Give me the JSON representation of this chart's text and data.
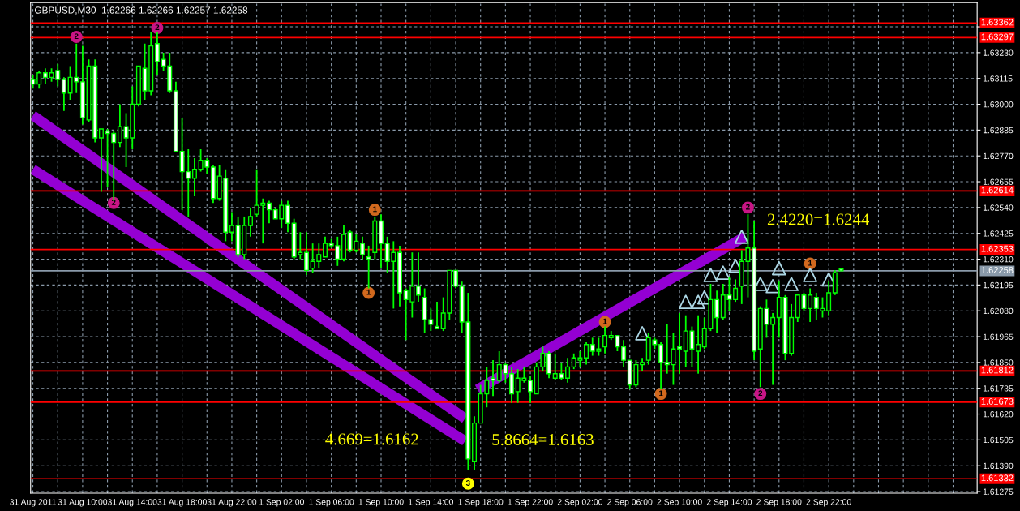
{
  "chart_data": {
    "type": "candlestick",
    "title": "GBPUSD,M30  1.62266 1.62266 1.62257 1.62258",
    "color": "#00ff00",
    "x": [
      "2011-08-31T06:00",
      "2011-08-31T06:30",
      "2011-08-31T07:00",
      "2011-08-31T07:30",
      "2011-08-31T08:00",
      "2011-08-31T08:30",
      "2011-08-31T09:00",
      "2011-08-31T09:30",
      "2011-08-31T10:00",
      "2011-08-31T10:30",
      "2011-08-31T11:00",
      "2011-08-31T11:30",
      "2011-08-31T12:00",
      "2011-08-31T12:30",
      "2011-08-31T13:00",
      "2011-08-31T13:30",
      "2011-08-31T14:00",
      "2011-08-31T14:30",
      "2011-08-31T15:00",
      "2011-08-31T15:30",
      "2011-08-31T16:00",
      "2011-08-31T16:30",
      "2011-08-31T17:00",
      "2011-08-31T17:30",
      "2011-08-31T18:00",
      "2011-08-31T18:30",
      "2011-08-31T19:00",
      "2011-08-31T19:30",
      "2011-08-31T20:00",
      "2011-08-31T20:30",
      "2011-08-31T21:00",
      "2011-08-31T21:30",
      "2011-08-31T22:00",
      "2011-08-31T22:30",
      "2011-08-31T23:00",
      "2011-08-31T23:30",
      "2011-09-01T00:00",
      "2011-09-01T00:30",
      "2011-09-01T01:00",
      "2011-09-01T01:30",
      "2011-09-01T02:00",
      "2011-09-01T02:30",
      "2011-09-01T03:00",
      "2011-09-01T03:30",
      "2011-09-01T04:00",
      "2011-09-01T04:30",
      "2011-09-01T05:00",
      "2011-09-01T05:30",
      "2011-09-01T06:00",
      "2011-09-01T06:30",
      "2011-09-01T07:00",
      "2011-09-01T07:30",
      "2011-09-01T08:00",
      "2011-09-01T08:30",
      "2011-09-01T09:00",
      "2011-09-01T09:30",
      "2011-09-01T10:00",
      "2011-09-01T10:30",
      "2011-09-01T11:00",
      "2011-09-01T11:30",
      "2011-09-01T12:00",
      "2011-09-01T12:30",
      "2011-09-01T13:00",
      "2011-09-01T13:30",
      "2011-09-01T14:00",
      "2011-09-01T14:30",
      "2011-09-01T15:00",
      "2011-09-01T15:30",
      "2011-09-01T16:00",
      "2011-09-01T16:30",
      "2011-09-01T17:00",
      "2011-09-01T17:30",
      "2011-09-01T18:00",
      "2011-09-01T18:30",
      "2011-09-01T19:00",
      "2011-09-01T19:30",
      "2011-09-01T20:00",
      "2011-09-01T20:30",
      "2011-09-01T21:00",
      "2011-09-01T21:30",
      "2011-09-01T22:00",
      "2011-09-01T22:30",
      "2011-09-01T23:00",
      "2011-09-01T23:30",
      "2011-09-02T00:00",
      "2011-09-02T00:30",
      "2011-09-02T01:00",
      "2011-09-02T01:30",
      "2011-09-02T02:00",
      "2011-09-02T02:30",
      "2011-09-02T03:00",
      "2011-09-02T03:30",
      "2011-09-02T04:00",
      "2011-09-02T04:30",
      "2011-09-02T05:00",
      "2011-09-02T05:30",
      "2011-09-02T06:00",
      "2011-09-02T06:30",
      "2011-09-02T07:00",
      "2011-09-02T07:30",
      "2011-09-02T08:00",
      "2011-09-02T08:30",
      "2011-09-02T09:00",
      "2011-09-02T09:30",
      "2011-09-02T10:00",
      "2011-09-02T10:30",
      "2011-09-02T11:00",
      "2011-09-02T11:30",
      "2011-09-02T12:00",
      "2011-09-02T12:30",
      "2011-09-02T13:00",
      "2011-09-02T13:30",
      "2011-09-02T14:00",
      "2011-09-02T14:30",
      "2011-09-02T15:00",
      "2011-09-02T15:30",
      "2011-09-02T16:00",
      "2011-09-02T16:30",
      "2011-09-02T17:00",
      "2011-09-02T17:30",
      "2011-09-02T18:00",
      "2011-09-02T18:30",
      "2011-09-02T19:00",
      "2011-09-02T19:30",
      "2011-09-02T20:00",
      "2011-09-02T20:30",
      "2011-09-02T21:00",
      "2011-09-02T21:30",
      "2011-09-02T22:00",
      "2011-09-02T22:30",
      "2011-09-02T23:00"
    ],
    "ohlc": [
      [
        1.6311,
        1.6313,
        1.6307,
        1.6309
      ],
      [
        1.6309,
        1.6315,
        1.6307,
        1.6314
      ],
      [
        1.6314,
        1.6316,
        1.6309,
        1.6312
      ],
      [
        1.6312,
        1.6316,
        1.631,
        1.6314
      ],
      [
        1.6315,
        1.6318,
        1.6308,
        1.6311
      ],
      [
        1.6311,
        1.6312,
        1.6297,
        1.6305
      ],
      [
        1.6305,
        1.6317,
        1.6302,
        1.6312
      ],
      [
        1.6312,
        1.6327,
        1.6305,
        1.631
      ],
      [
        1.631,
        1.6326,
        1.6291,
        1.6294
      ],
      [
        1.6293,
        1.632,
        1.6292,
        1.6317
      ],
      [
        1.6317,
        1.632,
        1.6283,
        1.6285
      ],
      [
        1.6285,
        1.6289,
        1.6261,
        1.6289
      ],
      [
        1.6288,
        1.6289,
        1.6263,
        1.6287
      ],
      [
        1.6287,
        1.6288,
        1.6257,
        1.6283
      ],
      [
        1.6283,
        1.63,
        1.6281,
        1.629
      ],
      [
        1.629,
        1.6296,
        1.6272,
        1.6285
      ],
      [
        1.6285,
        1.6308,
        1.628,
        1.63
      ],
      [
        1.63,
        1.6317,
        1.6299,
        1.6317
      ],
      [
        1.6316,
        1.6327,
        1.6302,
        1.6306
      ],
      [
        1.6306,
        1.6332,
        1.6304,
        1.6326
      ],
      [
        1.6327,
        1.6332,
        1.6313,
        1.6319
      ],
      [
        1.632,
        1.6323,
        1.6315,
        1.6317
      ],
      [
        1.6317,
        1.6323,
        1.6305,
        1.6306
      ],
      [
        1.6306,
        1.631,
        1.6279,
        1.6279
      ],
      [
        1.6279,
        1.6294,
        1.6253,
        1.627
      ],
      [
        1.627,
        1.628,
        1.625,
        1.6267
      ],
      [
        1.6267,
        1.6276,
        1.6259,
        1.6271
      ],
      [
        1.6271,
        1.628,
        1.627,
        1.6275
      ],
      [
        1.6275,
        1.6276,
        1.6269,
        1.6272
      ],
      [
        1.6272,
        1.6273,
        1.6256,
        1.6258
      ],
      [
        1.6258,
        1.6273,
        1.6257,
        1.6268
      ],
      [
        1.6267,
        1.6271,
        1.6239,
        1.6243
      ],
      [
        1.6243,
        1.6252,
        1.6239,
        1.6246
      ],
      [
        1.6246,
        1.625,
        1.6232,
        1.6233
      ],
      [
        1.6233,
        1.625,
        1.6231,
        1.6246
      ],
      [
        1.6246,
        1.6254,
        1.6241,
        1.625
      ],
      [
        1.6251,
        1.6271,
        1.625,
        1.6255
      ],
      [
        1.6255,
        1.6258,
        1.6238,
        1.6256
      ],
      [
        1.6256,
        1.6257,
        1.6247,
        1.6253
      ],
      [
        1.6253,
        1.6254,
        1.6249,
        1.6249
      ],
      [
        1.6249,
        1.6257,
        1.6245,
        1.6255
      ],
      [
        1.6255,
        1.6257,
        1.6243,
        1.6247
      ],
      [
        1.6247,
        1.6249,
        1.6231,
        1.6232
      ],
      [
        1.6233,
        1.6243,
        1.6231,
        1.6234
      ],
      [
        1.6234,
        1.6243,
        1.6224,
        1.6226
      ],
      [
        1.6227,
        1.6238,
        1.6225,
        1.623
      ],
      [
        1.623,
        1.6238,
        1.6227,
        1.6233
      ],
      [
        1.6232,
        1.6241,
        1.6232,
        1.6238
      ],
      [
        1.6238,
        1.624,
        1.6236,
        1.6237
      ],
      [
        1.6237,
        1.6241,
        1.6228,
        1.6231
      ],
      [
        1.6231,
        1.6246,
        1.623,
        1.6242
      ],
      [
        1.6243,
        1.6244,
        1.6234,
        1.6235
      ],
      [
        1.6235,
        1.6242,
        1.6234,
        1.6239
      ],
      [
        1.6238,
        1.6241,
        1.6231,
        1.6233
      ],
      [
        1.6232,
        1.6237,
        1.6218,
        1.6231
      ],
      [
        1.6234,
        1.625,
        1.6231,
        1.6248
      ],
      [
        1.6248,
        1.6251,
        1.6227,
        1.6238
      ],
      [
        1.6238,
        1.6241,
        1.6225,
        1.623
      ],
      [
        1.623,
        1.6239,
        1.6209,
        1.6234
      ],
      [
        1.6234,
        1.6237,
        1.621,
        1.6216
      ],
      [
        1.6217,
        1.6218,
        1.6195,
        1.6213
      ],
      [
        1.6212,
        1.6234,
        1.6205,
        1.6219
      ],
      [
        1.6219,
        1.6234,
        1.6212,
        1.6215
      ],
      [
        1.6214,
        1.6218,
        1.6198,
        1.6204
      ],
      [
        1.6204,
        1.6209,
        1.6199,
        1.6202
      ],
      [
        1.6201,
        1.6212,
        1.62,
        1.62
      ],
      [
        1.62,
        1.6214,
        1.6199,
        1.6207
      ],
      [
        1.6207,
        1.6226,
        1.6204,
        1.6226
      ],
      [
        1.6226,
        1.6226,
        1.6218,
        1.6219
      ],
      [
        1.6219,
        1.6221,
        1.6198,
        1.6203
      ],
      [
        1.6203,
        1.6216,
        1.6137,
        1.6142
      ],
      [
        1.6141,
        1.6161,
        1.6137,
        1.6158
      ],
      [
        1.6158,
        1.6175,
        1.6158,
        1.6171
      ],
      [
        1.6171,
        1.6183,
        1.6165,
        1.6177
      ],
      [
        1.6178,
        1.6186,
        1.617,
        1.6177
      ],
      [
        1.6177,
        1.619,
        1.6176,
        1.6184
      ],
      [
        1.6184,
        1.6185,
        1.6176,
        1.618
      ],
      [
        1.618,
        1.6183,
        1.6167,
        1.6171
      ],
      [
        1.6172,
        1.6182,
        1.6167,
        1.6178
      ],
      [
        1.6177,
        1.6183,
        1.6176,
        1.6178
      ],
      [
        1.6177,
        1.6179,
        1.6167,
        1.6172
      ],
      [
        1.6171,
        1.6185,
        1.6171,
        1.6183
      ],
      [
        1.6183,
        1.6192,
        1.6181,
        1.6189
      ],
      [
        1.6189,
        1.619,
        1.6178,
        1.618
      ],
      [
        1.6178,
        1.6189,
        1.6177,
        1.618
      ],
      [
        1.618,
        1.6185,
        1.6177,
        1.6178
      ],
      [
        1.6178,
        1.6187,
        1.6176,
        1.6183
      ],
      [
        1.6183,
        1.6189,
        1.6182,
        1.6187
      ],
      [
        1.6186,
        1.619,
        1.6183,
        1.6187
      ],
      [
        1.6187,
        1.6194,
        1.6184,
        1.6193
      ],
      [
        1.6193,
        1.6196,
        1.6188,
        1.619
      ],
      [
        1.619,
        1.6196,
        1.6188,
        1.6191
      ],
      [
        1.6192,
        1.6201,
        1.6189,
        1.6197
      ],
      [
        1.6196,
        1.6199,
        1.6195,
        1.6197
      ],
      [
        1.6197,
        1.6197,
        1.619,
        1.6192
      ],
      [
        1.6192,
        1.6195,
        1.6183,
        1.6186
      ],
      [
        1.6186,
        1.6186,
        1.6173,
        1.6175
      ],
      [
        1.6175,
        1.6186,
        1.6174,
        1.6184
      ],
      [
        1.6184,
        1.6187,
        1.6181,
        1.6185
      ],
      [
        1.6186,
        1.6198,
        1.6184,
        1.6196
      ],
      [
        1.6195,
        1.6196,
        1.6191,
        1.6193
      ],
      [
        1.6193,
        1.6194,
        1.6173,
        1.6185
      ],
      [
        1.6185,
        1.6202,
        1.618,
        1.6184
      ],
      [
        1.6184,
        1.6198,
        1.6175,
        1.6191
      ],
      [
        1.6192,
        1.6207,
        1.618,
        1.6191
      ],
      [
        1.619,
        1.6206,
        1.6183,
        1.6199
      ],
      [
        1.6199,
        1.6201,
        1.6183,
        1.6191
      ],
      [
        1.619,
        1.6206,
        1.618,
        1.6193
      ],
      [
        1.6192,
        1.6205,
        1.6191,
        1.62
      ],
      [
        1.62,
        1.622,
        1.6199,
        1.6213
      ],
      [
        1.6213,
        1.6217,
        1.6198,
        1.6205
      ],
      [
        1.6205,
        1.622,
        1.6204,
        1.6215
      ],
      [
        1.6215,
        1.6223,
        1.6208,
        1.6213
      ],
      [
        1.6213,
        1.6222,
        1.6212,
        1.6218
      ],
      [
        1.6219,
        1.6235,
        1.6211,
        1.623
      ],
      [
        1.623,
        1.6251,
        1.6214,
        1.6236
      ],
      [
        1.6236,
        1.6248,
        1.6186,
        1.619
      ],
      [
        1.6191,
        1.621,
        1.6174,
        1.6209
      ],
      [
        1.6209,
        1.6213,
        1.6196,
        1.6202
      ],
      [
        1.6202,
        1.6207,
        1.6175,
        1.6205
      ],
      [
        1.6205,
        1.6221,
        1.6196,
        1.6214
      ],
      [
        1.6214,
        1.6215,
        1.6186,
        1.6189
      ],
      [
        1.6189,
        1.6211,
        1.6188,
        1.6205
      ],
      [
        1.6205,
        1.6215,
        1.6203,
        1.6215
      ],
      [
        1.6215,
        1.6216,
        1.6208,
        1.6209
      ],
      [
        1.6209,
        1.6218,
        1.6203,
        1.6215
      ],
      [
        1.6214,
        1.6216,
        1.6204,
        1.6209
      ],
      [
        1.6208,
        1.6214,
        1.6205,
        1.6209
      ],
      [
        1.6208,
        1.6221,
        1.6206,
        1.6216
      ],
      [
        1.6216,
        1.6226,
        1.6215,
        1.6225
      ],
      [
        1.62266,
        1.62266,
        1.62257,
        1.62258
      ]
    ],
    "series": [
      {
        "type": "line",
        "color": "#9400d3",
        "x": [
          "2011-08-31T06:00",
          "2011-09-01T16:45"
        ],
        "values": [
          1.6295,
          1.616
        ]
      },
      {
        "type": "line",
        "color": "#9400d3",
        "x": [
          "2011-08-31T06:00",
          "2011-09-01T16:45"
        ],
        "values": [
          1.6271,
          1.615
        ]
      },
      {
        "type": "line",
        "color": "#9400d3",
        "x": [
          "2011-09-01T17:45",
          "2011-09-02T15:15"
        ],
        "values": [
          1.6173,
          1.6241
        ]
      },
      {
        "type": "scatter",
        "marker": "triangle",
        "color": "#add8e6",
        "x": [
          "2011-09-02T07:00",
          "2011-09-02T10:30",
          "2011-09-02T11:30",
          "2011-09-02T12:00",
          "2011-09-02T12:30",
          "2011-09-02T13:30",
          "2011-09-02T14:30",
          "2011-09-02T15:00",
          "2011-09-02T16:30",
          "2011-09-02T17:30",
          "2011-09-02T18:00",
          "2011-09-02T19:00",
          "2011-09-02T20:30",
          "2011-09-02T22:00"
        ],
        "values": [
          1.6198,
          1.6212,
          1.6212,
          1.6214,
          1.6224,
          1.6225,
          1.6228,
          1.6241,
          1.622,
          1.6219,
          1.6227,
          1.622,
          1.6224,
          1.6222
        ]
      },
      {
        "type": "scatter",
        "marker": "circle",
        "color": "#c71585",
        "x": [
          "2011-08-31T09:30",
          "2011-08-31T12:30",
          "2011-08-31T16:00",
          "2011-09-02T15:30",
          "2011-09-02T16:30"
        ],
        "values": [
          1.633,
          1.6256,
          1.6334,
          1.6254,
          1.6171
        ]
      },
      {
        "type": "scatter",
        "marker": "circle",
        "color": "#d2691e",
        "x": [
          "2011-09-01T09:00",
          "2011-09-01T09:30",
          "2011-09-02T04:00",
          "2011-09-02T08:30",
          "2011-09-02T20:30"
        ],
        "values": [
          1.6216,
          1.6253,
          1.6203,
          1.6171,
          1.6229
        ]
      },
      {
        "type": "scatter",
        "marker": "circle",
        "color": "#ffff00",
        "x": [
          "2011-09-01T17:00"
        ],
        "values": [
          1.6131
        ]
      }
    ],
    "ref_lines": [
      {
        "axis": "y",
        "value": 1.63362,
        "label": "1.63362",
        "color": "#ff0000"
      },
      {
        "axis": "y",
        "value": 1.63297,
        "label": "1.63297",
        "color": "#ff0000"
      },
      {
        "axis": "y",
        "value": 1.62614,
        "label": "1.62614",
        "color": "#ff0000"
      },
      {
        "axis": "y",
        "value": 1.62353,
        "label": "1.62353",
        "color": "#ff0000"
      },
      {
        "axis": "y",
        "value": 1.61812,
        "label": "1.61812",
        "color": "#ff0000"
      },
      {
        "axis": "y",
        "value": 1.61673,
        "label": "1.61673",
        "color": "#ff0000"
      },
      {
        "axis": "y",
        "value": 1.61332,
        "label": "1.61332",
        "color": "#ff0000"
      },
      {
        "axis": "y",
        "value": 1.62258,
        "label": "1.62258",
        "color": "#8a9aaa"
      }
    ],
    "annotations": [
      "4.669=1.6162",
      "5.8664=1.6163",
      "2.4220=1.6244",
      {
        "text": "2",
        "x": "2011-08-31T09:30",
        "y": 1.633
      },
      {
        "text": "2",
        "x": "2011-08-31T12:30",
        "y": 1.6256
      },
      {
        "text": "2",
        "x": "2011-08-31T16:00",
        "y": 1.6334
      },
      {
        "text": "2",
        "x": "2011-09-02T15:30",
        "y": 1.6254
      },
      {
        "text": "2",
        "x": "2011-09-02T16:30",
        "y": 1.6171
      },
      {
        "text": "1",
        "x": "2011-09-01T09:00",
        "y": 1.6216
      },
      {
        "text": "1",
        "x": "2011-09-01T09:30",
        "y": 1.6253
      },
      {
        "text": "1",
        "x": "2011-09-02T04:00",
        "y": 1.6203
      },
      {
        "text": "1",
        "x": "2011-09-02T08:30",
        "y": 1.6171
      },
      {
        "text": "1",
        "x": "2011-09-02T20:30",
        "y": 1.6229
      },
      {
        "text": "3",
        "x": "2011-09-01T17:00",
        "y": 1.6131
      }
    ],
    "xlim": [
      "2011-08-31T05:49",
      "2011-09-03T09:56"
    ],
    "ylim": [
      1.61268,
      1.63453
    ],
    "yticks": [
      {
        "value": 1.63345,
        "label": null
      },
      {
        "value": 1.6323,
        "label": "1.63230"
      },
      {
        "value": 1.63115,
        "label": "1.63115"
      },
      {
        "value": 1.63,
        "label": "1.63000"
      },
      {
        "value": 1.62885,
        "label": "1.62885"
      },
      {
        "value": 1.6277,
        "label": "1.62770"
      },
      {
        "value": 1.62655,
        "label": "1.62655"
      },
      {
        "value": 1.6254,
        "label": "1.62540"
      },
      {
        "value": 1.62425,
        "label": "1.62425"
      },
      {
        "value": 1.6231,
        "label": "1.62310"
      },
      {
        "value": 1.62195,
        "label": "1.62195"
      },
      {
        "value": 1.6208,
        "label": "1.62080"
      },
      {
        "value": 1.61965,
        "label": "1.61965"
      },
      {
        "value": 1.6185,
        "label": "1.61850"
      },
      {
        "value": 1.61735,
        "label": "1.61735"
      },
      {
        "value": 1.6162,
        "label": "1.61620"
      },
      {
        "value": 1.61505,
        "label": "1.61505"
      },
      {
        "value": 1.6139,
        "label": "1.61390"
      },
      {
        "value": 1.61275,
        "label": "1.61275"
      }
    ],
    "xticks": [
      {
        "value": "2011-08-31T06:00",
        "label": "31 Aug 2011"
      },
      {
        "value": "2011-08-31T08:00",
        "label": null
      },
      {
        "value": "2011-08-31T10:00",
        "label": "31 Aug 10:00"
      },
      {
        "value": "2011-08-31T12:00",
        "label": null
      },
      {
        "value": "2011-08-31T14:00",
        "label": "31 Aug 14:00"
      },
      {
        "value": "2011-08-31T16:00",
        "label": null
      },
      {
        "value": "2011-08-31T18:00",
        "label": "31 Aug 18:00"
      },
      {
        "value": "2011-08-31T20:00",
        "label": null
      },
      {
        "value": "2011-08-31T22:00",
        "label": "31 Aug 22:00"
      },
      {
        "value": "2011-09-01T00:00",
        "label": null
      },
      {
        "value": "2011-09-01T02:00",
        "label": "1 Sep 02:00"
      },
      {
        "value": "2011-09-01T04:00",
        "label": null
      },
      {
        "value": "2011-09-01T06:00",
        "label": "1 Sep 06:00"
      },
      {
        "value": "2011-09-01T08:00",
        "label": null
      },
      {
        "value": "2011-09-01T10:00",
        "label": "1 Sep 10:00"
      },
      {
        "value": "2011-09-01T12:00",
        "label": null
      },
      {
        "value": "2011-09-01T14:00",
        "label": "1 Sep 14:00"
      },
      {
        "value": "2011-09-01T16:00",
        "label": null
      },
      {
        "value": "2011-09-01T18:00",
        "label": "1 Sep 18:00"
      },
      {
        "value": "2011-09-01T20:00",
        "label": null
      },
      {
        "value": "2011-09-01T22:00",
        "label": "1 Sep 22:00"
      },
      {
        "value": "2011-09-02T00:00",
        "label": null
      },
      {
        "value": "2011-09-02T02:00",
        "label": "2 Sep 02:00"
      },
      {
        "value": "2011-09-02T04:00",
        "label": null
      },
      {
        "value": "2011-09-02T06:00",
        "label": "2 Sep 06:00"
      },
      {
        "value": "2011-09-02T08:00",
        "label": null
      },
      {
        "value": "2011-09-02T10:00",
        "label": "2 Sep 10:00"
      },
      {
        "value": "2011-09-02T12:00",
        "label": null
      },
      {
        "value": "2011-09-02T14:00",
        "label": "2 Sep 14:00"
      },
      {
        "value": "2011-09-02T16:00",
        "label": null
      },
      {
        "value": "2011-09-02T18:00",
        "label": "2 Sep 18:00"
      },
      {
        "value": "2011-09-02T20:00",
        "label": null
      },
      {
        "value": "2011-09-02T22:00",
        "label": "2 Sep 22:00"
      },
      {
        "value": "2011-09-03T00:00",
        "label": null
      },
      {
        "value": "2011-09-03T02:00",
        "label": null
      },
      {
        "value": "2011-09-03T04:00",
        "label": null
      },
      {
        "value": "2011-09-03T06:00",
        "label": null
      },
      {
        "value": "2011-09-03T08:00",
        "label": null
      }
    ],
    "grid": true
  }
}
